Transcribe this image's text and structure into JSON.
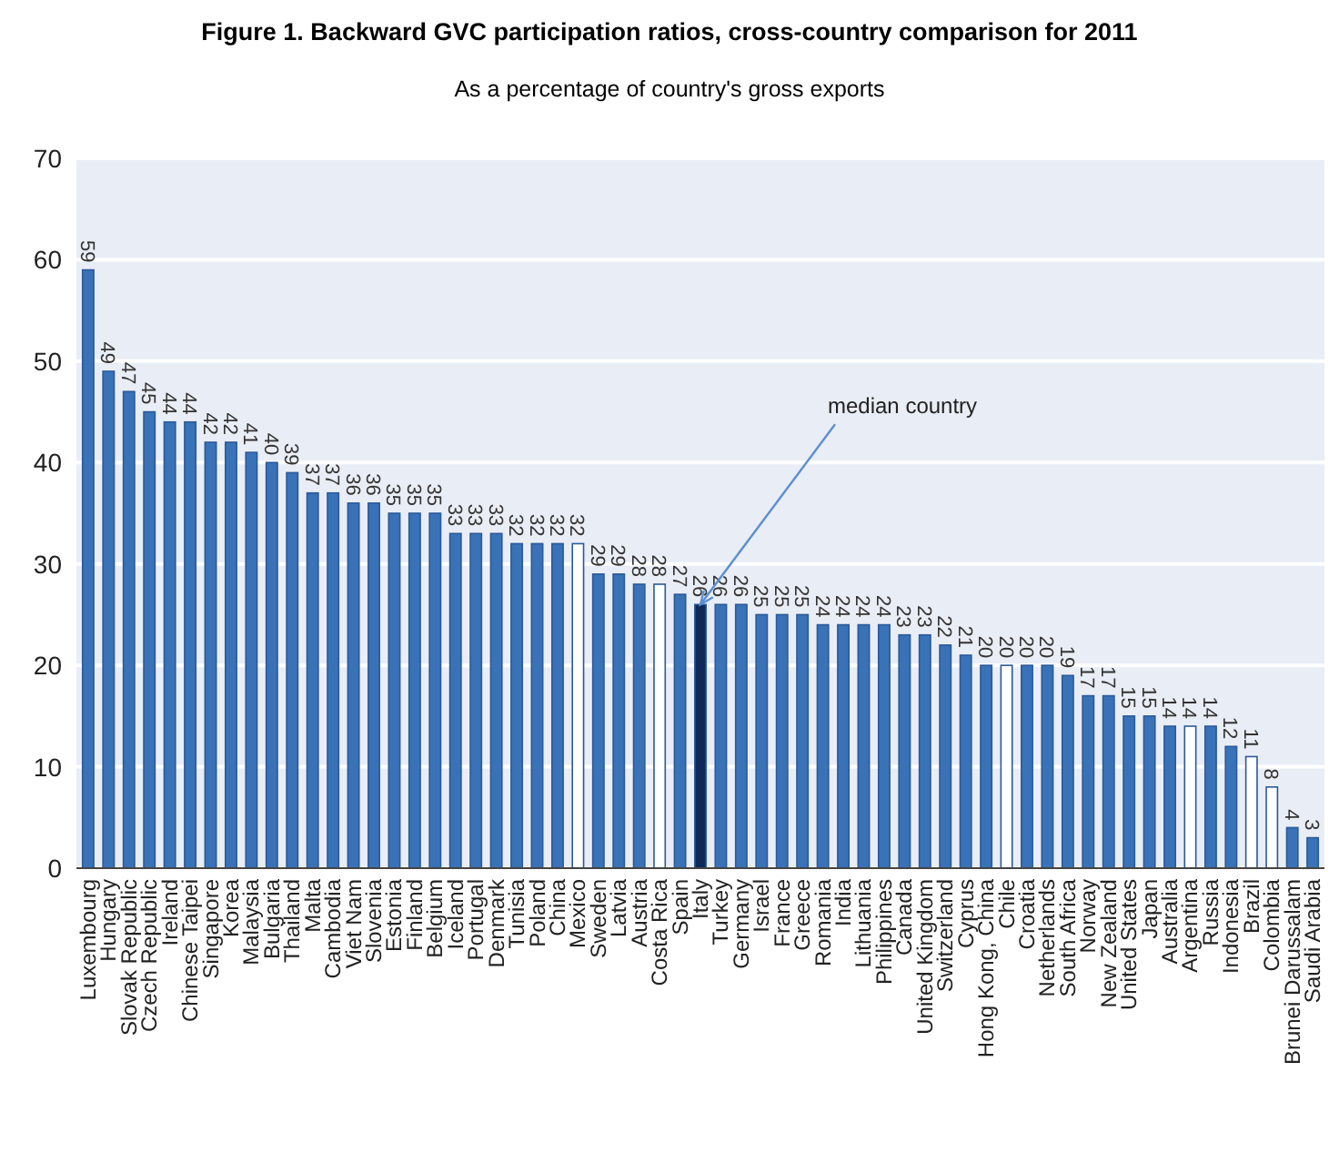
{
  "chart_data": {
    "type": "bar",
    "title": "Figure 1. Backward GVC participation ratios, cross-country comparison for 2011",
    "subtitle": "As a percentage of country's gross exports",
    "categories": [
      "Luxembourg",
      "Hungary",
      "Slovak Republic",
      "Czech Republic",
      "Ireland",
      "Chinese Taipei",
      "Singapore",
      "Korea",
      "Malaysia",
      "Bulgaria",
      "Thailand",
      "Malta",
      "Cambodia",
      "Viet Nam",
      "Slovenia",
      "Estonia",
      "Finland",
      "Belgium",
      "Iceland",
      "Portugal",
      "Denmark",
      "Tunisia",
      "Poland",
      "China",
      "Mexico",
      "Sweden",
      "Latvia",
      "Austria",
      "Costa Rica",
      "Spain",
      "Italy",
      "Turkey",
      "Germany",
      "Israel",
      "France",
      "Greece",
      "Romania",
      "India",
      "Lithuania",
      "Philippines",
      "Canada",
      "United Kingdom",
      "Switzerland",
      "Cyprus",
      "Hong Kong, China",
      "Chile",
      "Croatia",
      "Netherlands",
      "South Africa",
      "Norway",
      "New Zealand",
      "United States",
      "Japan",
      "Australia",
      "Argentina",
      "Russia",
      "Indonesia",
      "Brazil",
      "Colombia",
      "Brunei Darussalam",
      "Saudi Arabia"
    ],
    "values": [
      59,
      49,
      47,
      45,
      44,
      44,
      42,
      42,
      41,
      40,
      39,
      37,
      37,
      36,
      36,
      35,
      35,
      35,
      33,
      33,
      33,
      32,
      32,
      32,
      32,
      29,
      29,
      28,
      28,
      27,
      26,
      26,
      26,
      25,
      25,
      25,
      24,
      24,
      24,
      24,
      23,
      23,
      22,
      21,
      20,
      20,
      20,
      20,
      19,
      17,
      17,
      15,
      15,
      14,
      14,
      14,
      12,
      11,
      8,
      4,
      3
    ],
    "colors": [
      "#3a72b8",
      "#3a72b8",
      "#3a72b8",
      "#3a72b8",
      "#3a72b8",
      "#3a72b8",
      "#3a72b8",
      "#3a72b8",
      "#3a72b8",
      "#3a72b8",
      "#3a72b8",
      "#3a72b8",
      "#3a72b8",
      "#3a72b8",
      "#3a72b8",
      "#3a72b8",
      "#3a72b8",
      "#3a72b8",
      "#3a72b8",
      "#3a72b8",
      "#3a72b8",
      "#3a72b8",
      "#3a72b8",
      "#3a72b8",
      "#ffffff",
      "#3a72b8",
      "#3a72b8",
      "#3a72b8",
      "#ffffff",
      "#3a72b8",
      "#0d2a5a",
      "#3a72b8",
      "#3a72b8",
      "#3a72b8",
      "#3a72b8",
      "#3a72b8",
      "#3a72b8",
      "#3a72b8",
      "#3a72b8",
      "#3a72b8",
      "#3a72b8",
      "#3a72b8",
      "#3a72b8",
      "#3a72b8",
      "#3a72b8",
      "#ffffff",
      "#3a72b8",
      "#3a72b8",
      "#3a72b8",
      "#3a72b8",
      "#3a72b8",
      "#3a72b8",
      "#3a72b8",
      "#3a72b8",
      "#ffffff",
      "#3a72b8",
      "#3a72b8",
      "#ffffff",
      "#ffffff",
      "#3a72b8",
      "#3a72b8"
    ],
    "ylim": [
      0,
      70
    ],
    "yticks": [
      0,
      10,
      20,
      30,
      40,
      50,
      60,
      70
    ],
    "grid": "y",
    "data_labels": true,
    "annotations": [
      {
        "text": "median country",
        "x": "Italy",
        "y": 26
      }
    ]
  }
}
